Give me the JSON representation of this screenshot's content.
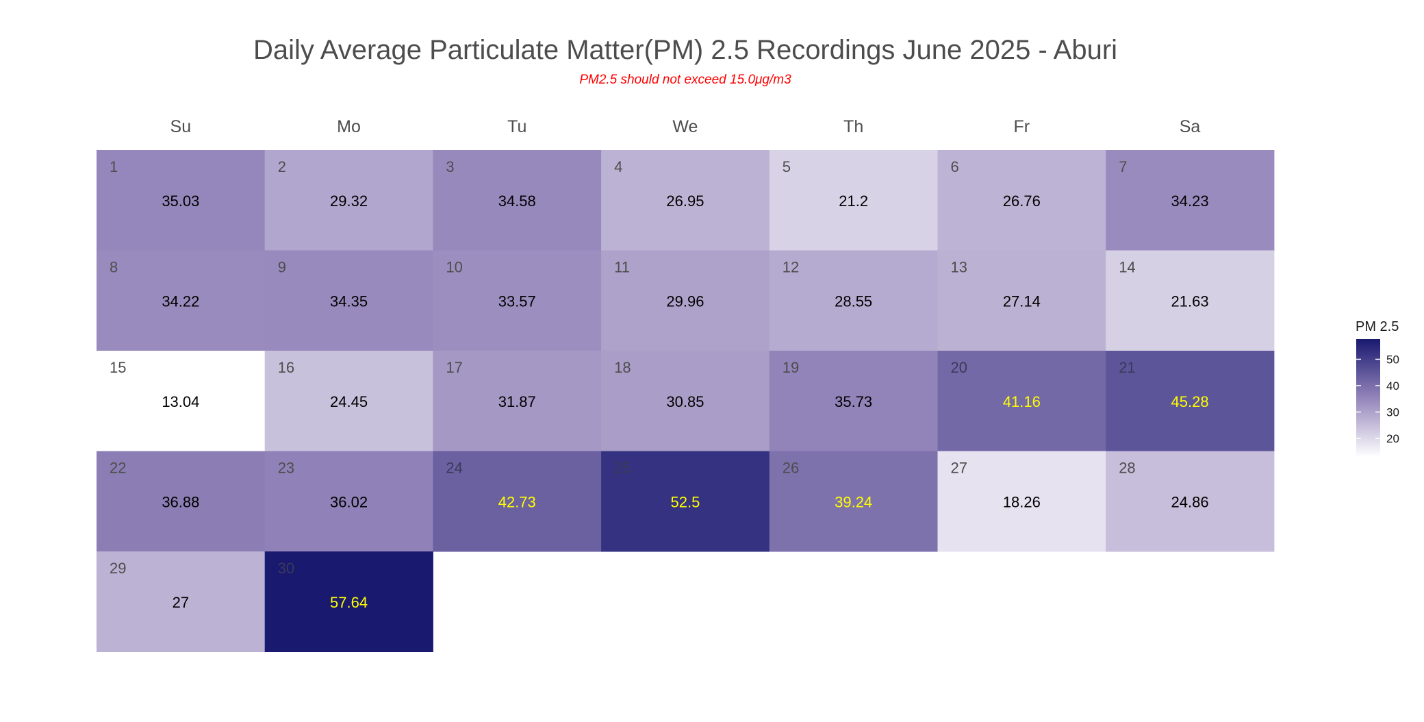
{
  "chart_data": {
    "type": "heatmap",
    "title": "Daily Average Particulate Matter(PM) 2.5 Recordings June 2025 -  Aburi",
    "subtitle": "PM2.5 should not exceed 15.0μg/m3",
    "weekdays": [
      "Su",
      "Mo",
      "Tu",
      "We",
      "Th",
      "Fr",
      "Sa"
    ],
    "first_weekday_index": 0,
    "days": [
      1,
      2,
      3,
      4,
      5,
      6,
      7,
      8,
      9,
      10,
      11,
      12,
      13,
      14,
      15,
      16,
      17,
      18,
      19,
      20,
      21,
      22,
      23,
      24,
      25,
      26,
      27,
      28,
      29,
      30
    ],
    "labels": [
      "35.03",
      "29.32",
      "34.58",
      "26.95",
      "21.2",
      "26.76",
      "34.23",
      "34.22",
      "34.35",
      "33.57",
      "29.96",
      "28.55",
      "27.14",
      "21.63",
      "13.04",
      "24.45",
      "31.87",
      "30.85",
      "35.73",
      "41.16",
      "45.28",
      "36.88",
      "36.02",
      "42.73",
      "52.5",
      "39.24",
      "18.26",
      "24.86",
      "27",
      "57.64"
    ],
    "values": [
      35.03,
      29.32,
      34.58,
      26.95,
      21.2,
      26.76,
      34.23,
      34.22,
      34.35,
      33.57,
      29.96,
      28.55,
      27.14,
      21.63,
      13.04,
      24.45,
      31.87,
      30.85,
      35.73,
      41.16,
      45.28,
      36.88,
      36.02,
      42.73,
      52.5,
      39.24,
      18.26,
      24.86,
      27,
      57.64
    ],
    "legend": {
      "title": "PM 2.5",
      "ticks": [
        "20",
        "30",
        "40",
        "50"
      ],
      "tick_values": [
        20,
        30,
        40,
        50
      ],
      "range": [
        13.04,
        57.64
      ],
      "placement": "right"
    },
    "colors": {
      "low": "#ffffff",
      "mid": "#9485ba",
      "high": "#191970",
      "label_dark": "#000000",
      "label_light": "#ffff00",
      "subtitle": "#ff0000"
    }
  }
}
